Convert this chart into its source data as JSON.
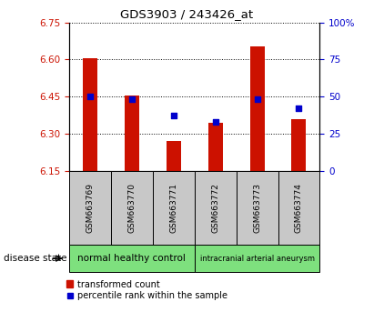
{
  "title": "GDS3903 / 243426_at",
  "samples": [
    "GSM663769",
    "GSM663770",
    "GSM663771",
    "GSM663772",
    "GSM663773",
    "GSM663774"
  ],
  "transformed_count": [
    6.605,
    6.455,
    6.27,
    6.345,
    6.655,
    6.36
  ],
  "percentile_rank": [
    50,
    48,
    37,
    33,
    48,
    42
  ],
  "ylim_left": [
    6.15,
    6.75
  ],
  "ylim_right": [
    0,
    100
  ],
  "yticks_left": [
    6.15,
    6.3,
    6.45,
    6.6,
    6.75
  ],
  "yticks_right": [
    0,
    25,
    50,
    75,
    100
  ],
  "bar_color": "#CC1100",
  "dot_color": "#0000CC",
  "bar_bottom": 6.15,
  "tick_color_left": "#CC1100",
  "tick_color_right": "#0000CC",
  "disease_state_label": "disease state",
  "legend_bar_label": "transformed count",
  "legend_dot_label": "percentile rank within the sample",
  "sample_box_color": "#C8C8C8",
  "group1_label": "normal healthy control",
  "group2_label": "intracranial arterial aneurysm",
  "group_color": "#7EE07E",
  "group1_samples": 3,
  "group2_samples": 3
}
